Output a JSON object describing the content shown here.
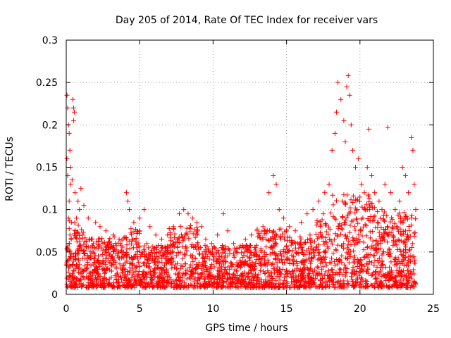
{
  "chart_data": {
    "type": "scatter",
    "title": "Day 205 of 2014, Rate Of TEC Index for receiver vars",
    "xlabel": "GPS time / hours",
    "ylabel": "ROTI / TECUs",
    "xlim": [
      0,
      25
    ],
    "ylim": [
      0,
      0.3
    ],
    "grid": true,
    "marker": "plus",
    "color": "#ff0000",
    "x_ticks": [
      {
        "value": 0,
        "label": "0"
      },
      {
        "value": 5,
        "label": "5"
      },
      {
        "value": 10,
        "label": "10"
      },
      {
        "value": 15,
        "label": "15"
      },
      {
        "value": 20,
        "label": "20"
      },
      {
        "value": 25,
        "label": "25"
      }
    ],
    "y_ticks": [
      {
        "value": 0,
        "label": "0"
      },
      {
        "value": 0.05,
        "label": "0.05"
      },
      {
        "value": 0.1,
        "label": "0.1"
      },
      {
        "value": 0.15,
        "label": "0.15"
      },
      {
        "value": 0.2,
        "label": "0.2"
      },
      {
        "value": 0.25,
        "label": "0.25"
      },
      {
        "value": 0.3,
        "label": "0.3"
      }
    ],
    "series": [
      {
        "name": "vars",
        "points": [
          [
            0.05,
            0.235
          ],
          [
            0.1,
            0.22
          ],
          [
            0.15,
            0.2
          ],
          [
            0.2,
            0.19
          ],
          [
            0.25,
            0.17
          ],
          [
            0.05,
            0.16
          ],
          [
            0.3,
            0.15
          ],
          [
            0.1,
            0.14
          ],
          [
            0.4,
            0.135
          ],
          [
            0.45,
            0.23
          ],
          [
            0.5,
            0.22
          ],
          [
            0.55,
            0.215
          ],
          [
            0.5,
            0.205
          ],
          [
            0.3,
            0.13
          ],
          [
            0.6,
            0.12
          ],
          [
            0.2,
            0.11
          ],
          [
            0.8,
            0.11
          ],
          [
            1.0,
            0.125
          ],
          [
            0.9,
            0.1
          ],
          [
            1.2,
            0.105
          ],
          [
            0.15,
            0.09
          ],
          [
            0.35,
            0.085
          ],
          [
            0.7,
            0.09
          ],
          [
            1.5,
            0.09
          ],
          [
            2.0,
            0.085
          ],
          [
            2.3,
            0.08
          ],
          [
            2.7,
            0.075
          ],
          [
            3.2,
            0.07
          ],
          [
            3.6,
            0.065
          ],
          [
            4.1,
            0.12
          ],
          [
            4.2,
            0.11
          ],
          [
            4.3,
            0.1
          ],
          [
            4.6,
            0.085
          ],
          [
            5.0,
            0.09
          ],
          [
            5.3,
            0.1
          ],
          [
            5.7,
            0.08
          ],
          [
            6.1,
            0.07
          ],
          [
            6.5,
            0.065
          ],
          [
            6.9,
            0.07
          ],
          [
            7.3,
            0.08
          ],
          [
            7.7,
            0.095
          ],
          [
            8.0,
            0.1
          ],
          [
            8.3,
            0.095
          ],
          [
            8.6,
            0.09
          ],
          [
            8.9,
            0.085
          ],
          [
            9.2,
            0.08
          ],
          [
            9.5,
            0.065
          ],
          [
            9.9,
            0.06
          ],
          [
            10.3,
            0.07
          ],
          [
            10.7,
            0.095
          ],
          [
            11.0,
            0.075
          ],
          [
            11.4,
            0.06
          ],
          [
            11.8,
            0.055
          ],
          [
            12.2,
            0.065
          ],
          [
            12.6,
            0.07
          ],
          [
            13.0,
            0.075
          ],
          [
            13.4,
            0.08
          ],
          [
            13.8,
            0.12
          ],
          [
            14.1,
            0.14
          ],
          [
            14.3,
            0.13
          ],
          [
            14.5,
            0.1
          ],
          [
            14.8,
            0.09
          ],
          [
            15.2,
            0.08
          ],
          [
            15.6,
            0.075
          ],
          [
            16.0,
            0.085
          ],
          [
            16.4,
            0.095
          ],
          [
            16.8,
            0.1
          ],
          [
            17.2,
            0.11
          ],
          [
            17.6,
            0.12
          ],
          [
            17.9,
            0.13
          ],
          [
            18.1,
            0.17
          ],
          [
            18.3,
            0.19
          ],
          [
            18.4,
            0.215
          ],
          [
            18.5,
            0.25
          ],
          [
            18.7,
            0.23
          ],
          [
            18.9,
            0.205
          ],
          [
            19.0,
            0.18
          ],
          [
            19.1,
            0.245
          ],
          [
            19.2,
            0.258
          ],
          [
            19.3,
            0.235
          ],
          [
            19.4,
            0.2
          ],
          [
            19.5,
            0.17
          ],
          [
            19.7,
            0.15
          ],
          [
            19.9,
            0.16
          ],
          [
            20.1,
            0.13
          ],
          [
            20.3,
            0.12
          ],
          [
            20.5,
            0.15
          ],
          [
            20.6,
            0.195
          ],
          [
            20.8,
            0.14
          ],
          [
            21.0,
            0.12
          ],
          [
            21.3,
            0.11
          ],
          [
            21.5,
            0.1
          ],
          [
            21.7,
            0.13
          ],
          [
            21.9,
            0.197
          ],
          [
            22.1,
            0.12
          ],
          [
            22.4,
            0.1
          ],
          [
            22.7,
            0.11
          ],
          [
            22.9,
            0.15
          ],
          [
            23.1,
            0.14
          ],
          [
            23.3,
            0.12
          ],
          [
            23.5,
            0.185
          ],
          [
            23.6,
            0.17
          ],
          [
            23.7,
            0.13
          ],
          [
            23.8,
            0.1
          ],
          [
            23.5,
            0.09
          ],
          [
            22.5,
            0.08
          ],
          [
            21.2,
            0.085
          ],
          [
            20.2,
            0.09
          ],
          [
            19.8,
            0.1
          ],
          [
            18.8,
            0.11
          ],
          [
            17.5,
            0.095
          ],
          [
            16.6,
            0.07
          ],
          [
            15.9,
            0.06
          ],
          [
            13.6,
            0.065
          ],
          [
            12.9,
            0.055
          ],
          [
            11.6,
            0.05
          ],
          [
            10.1,
            0.055
          ],
          [
            9.7,
            0.05
          ],
          [
            8.1,
            0.07
          ],
          [
            7.1,
            0.055
          ],
          [
            6.3,
            0.05
          ],
          [
            5.5,
            0.06
          ],
          [
            4.8,
            0.055
          ],
          [
            3.9,
            0.05
          ],
          [
            3.0,
            0.055
          ],
          [
            2.5,
            0.06
          ],
          [
            1.7,
            0.065
          ],
          [
            1.1,
            0.07
          ],
          [
            0.6,
            0.075
          ],
          [
            0.25,
            0.07
          ]
        ]
      }
    ]
  }
}
